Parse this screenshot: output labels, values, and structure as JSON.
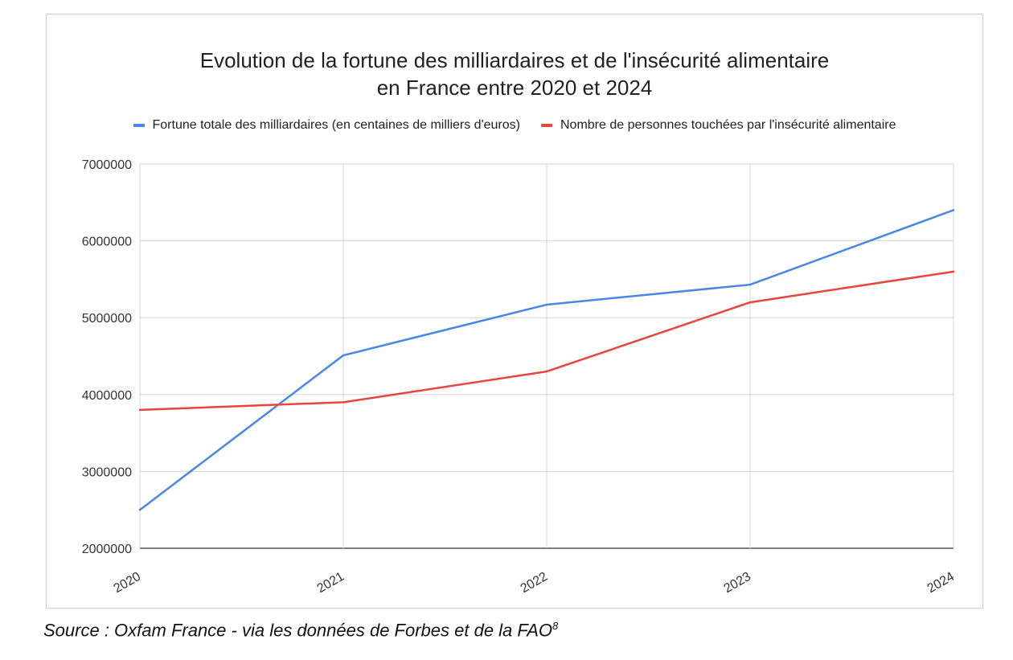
{
  "chart_data": {
    "type": "line",
    "title_line1": "Evolution de la fortune des milliardaires et de l'insécurité alimentaire",
    "title_line2": "en France entre 2020 et 2024",
    "categories": [
      "2020",
      "2021",
      "2022",
      "2023",
      "2024"
    ],
    "series": [
      {
        "name": "Fortune totale des milliardaires (en centaines de milliers d'euros)",
        "color": "#4a86e8",
        "values": [
          2500000,
          4510000,
          5170000,
          5430000,
          6400000
        ]
      },
      {
        "name": "Nombre de personnes touchées par l'insécurité alimentaire",
        "color": "#e8453c",
        "values": [
          3800000,
          3900000,
          4300000,
          5200000,
          5600000
        ]
      }
    ],
    "yticks": [
      "2000000",
      "3000000",
      "4000000",
      "5000000",
      "6000000",
      "7000000"
    ],
    "ylim": [
      2000000,
      7000000
    ],
    "grid": true,
    "legend_position": "top",
    "xlabel": "",
    "ylabel": ""
  },
  "source": {
    "text": "Source : Oxfam France - via les données de Forbes et de la FAO",
    "footnote": "8"
  }
}
